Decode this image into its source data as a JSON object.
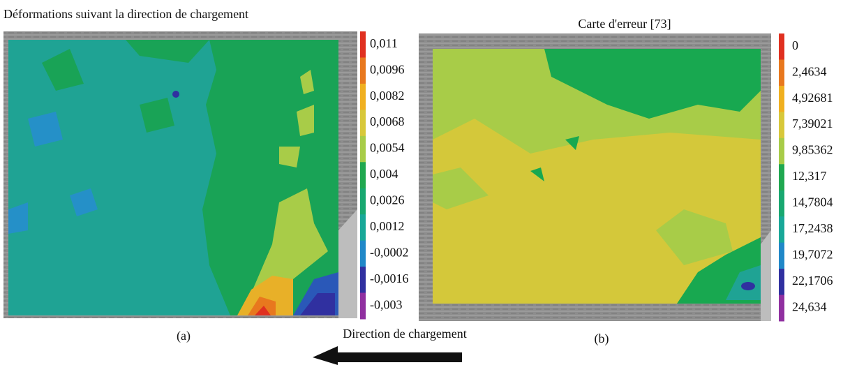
{
  "panels": [
    {
      "title": "Déformations suivant la direction de chargement",
      "scale": [
        "0,011",
        "0,0096",
        "0,0082",
        "0,0068",
        "0,0054",
        "0,004",
        "0,0026",
        "0,0012",
        "-0,0002",
        "-0,0016",
        "-0,003"
      ],
      "caption": "(a)"
    },
    {
      "title": "Carte d'erreur [73]",
      "scale": [
        "0",
        "2,4634",
        "4,92681",
        "7,39021",
        "9,85362",
        "12,317",
        "14,7804",
        "17,2438",
        "19,7072",
        "22,1706",
        "24,634"
      ],
      "caption": "(b)"
    }
  ],
  "arrow_label": "Direction de chargement"
}
